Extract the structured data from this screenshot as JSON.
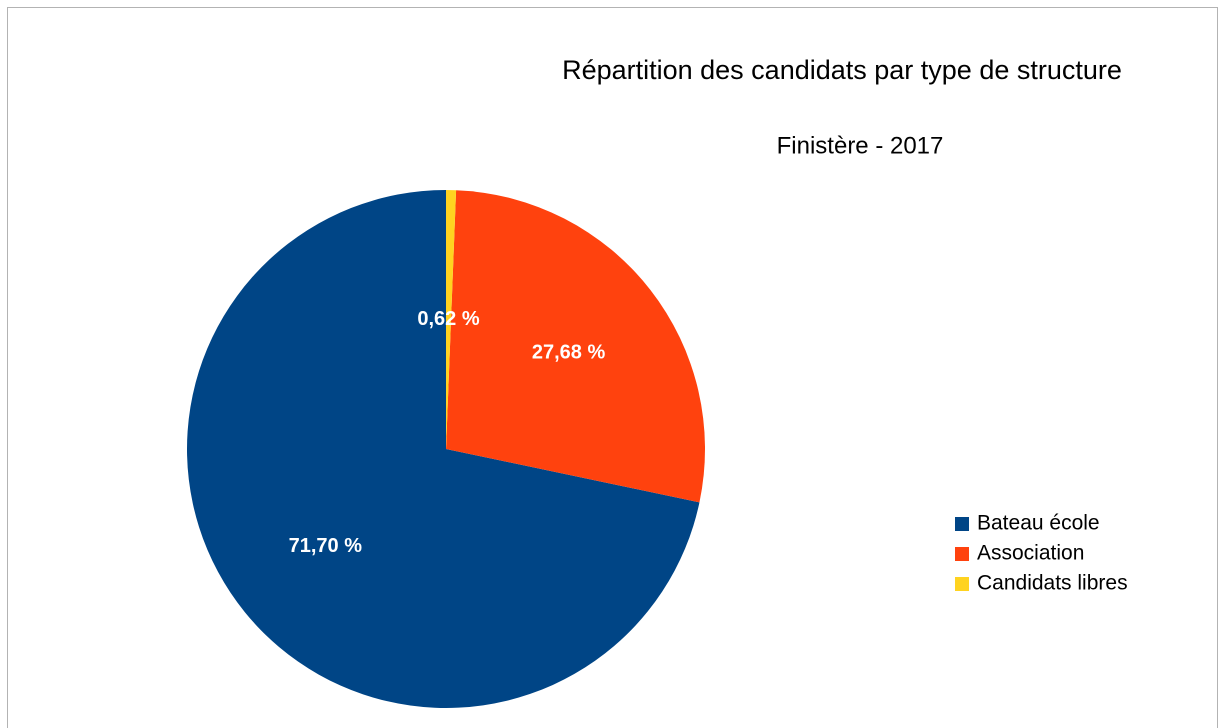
{
  "chart_data": {
    "type": "pie",
    "title": "Répartition des candidats par type de structure",
    "subtitle": "Finistère - 2017",
    "categories": [
      "Bateau école",
      "Association",
      "Candidats libres"
    ],
    "values": [
      71.7,
      27.68,
      0.62
    ],
    "value_labels": [
      "71,70 %",
      "27,68 %",
      "0,62 %"
    ],
    "colors": [
      "#004586",
      "#ff420e",
      "#ffd320"
    ],
    "legend": "right"
  }
}
